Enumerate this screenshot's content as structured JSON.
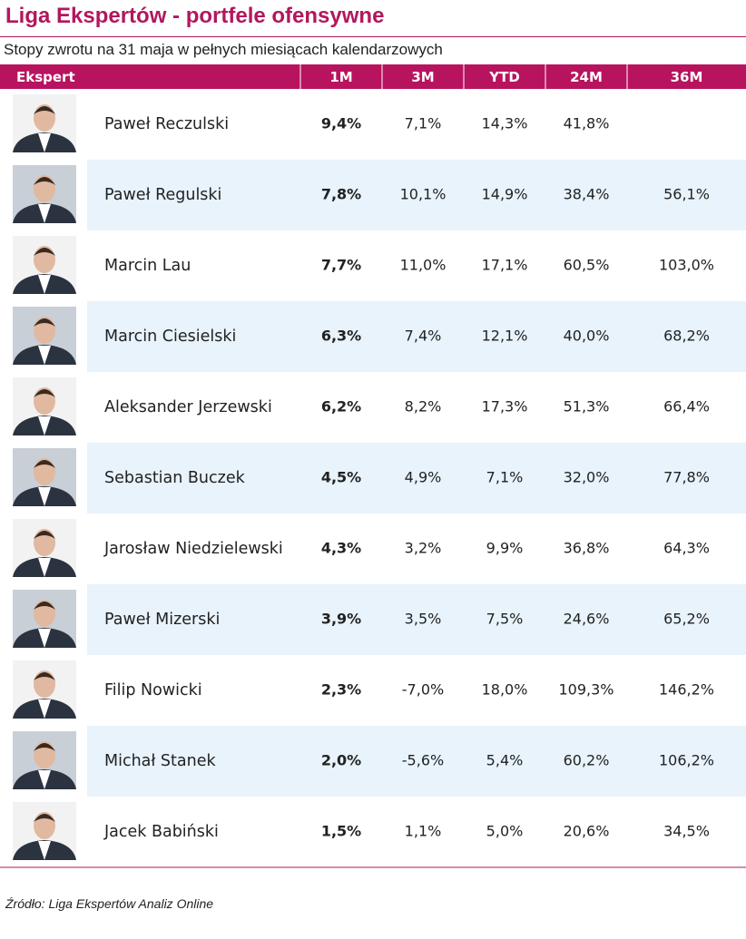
{
  "header": {
    "title": "Liga Ekspertów - portfele ofensywne",
    "subtitle": "Stopy zwrotu na 31 maja w pełnych miesiącach kalendarzowych"
  },
  "table": {
    "header": [
      "Ekspert",
      "1M",
      "3M",
      "YTD",
      "24M",
      "36M"
    ],
    "rows": [
      [
        "Paweł Reczulski",
        "9,4%",
        "7,1%",
        "14,3%",
        "41,8%",
        null
      ],
      [
        "Paweł Regulski",
        "7,8%",
        "10,1%",
        "14,9%",
        "38,4%",
        "56,1%"
      ],
      [
        "Marcin Lau",
        "7,7%",
        "11,0%",
        "17,1%",
        "60,5%",
        "103,0%"
      ],
      [
        "Marcin Ciesielski",
        "6,3%",
        "7,4%",
        "12,1%",
        "40,0%",
        "68,2%"
      ],
      [
        "Aleksander Jerzewski",
        "6,2%",
        "8,2%",
        "17,3%",
        "51,3%",
        "66,4%"
      ],
      [
        "Sebastian Buczek",
        "4,5%",
        "4,9%",
        "7,1%",
        "32,0%",
        "77,8%"
      ],
      [
        "Jarosław Niedzielewski",
        "4,3%",
        "3,2%",
        "9,9%",
        "36,8%",
        "64,3%"
      ],
      [
        "Paweł Mizerski",
        "3,9%",
        "3,5%",
        "7,5%",
        "24,6%",
        "65,2%"
      ],
      [
        "Filip Nowicki",
        "2,3%",
        "-7,0%",
        "18,0%",
        "109,3%",
        "146,2%"
      ],
      [
        "Michał Stanek",
        "2,0%",
        "-5,6%",
        "5,4%",
        "60,2%",
        "106,2%"
      ],
      [
        "Jacek Babiński",
        "1,5%",
        "1,1%",
        "5,0%",
        "20,6%",
        "34,5%"
      ]
    ]
  },
  "footer": {
    "source": "Źródło: Liga Ekspertów Analiz Online"
  }
}
